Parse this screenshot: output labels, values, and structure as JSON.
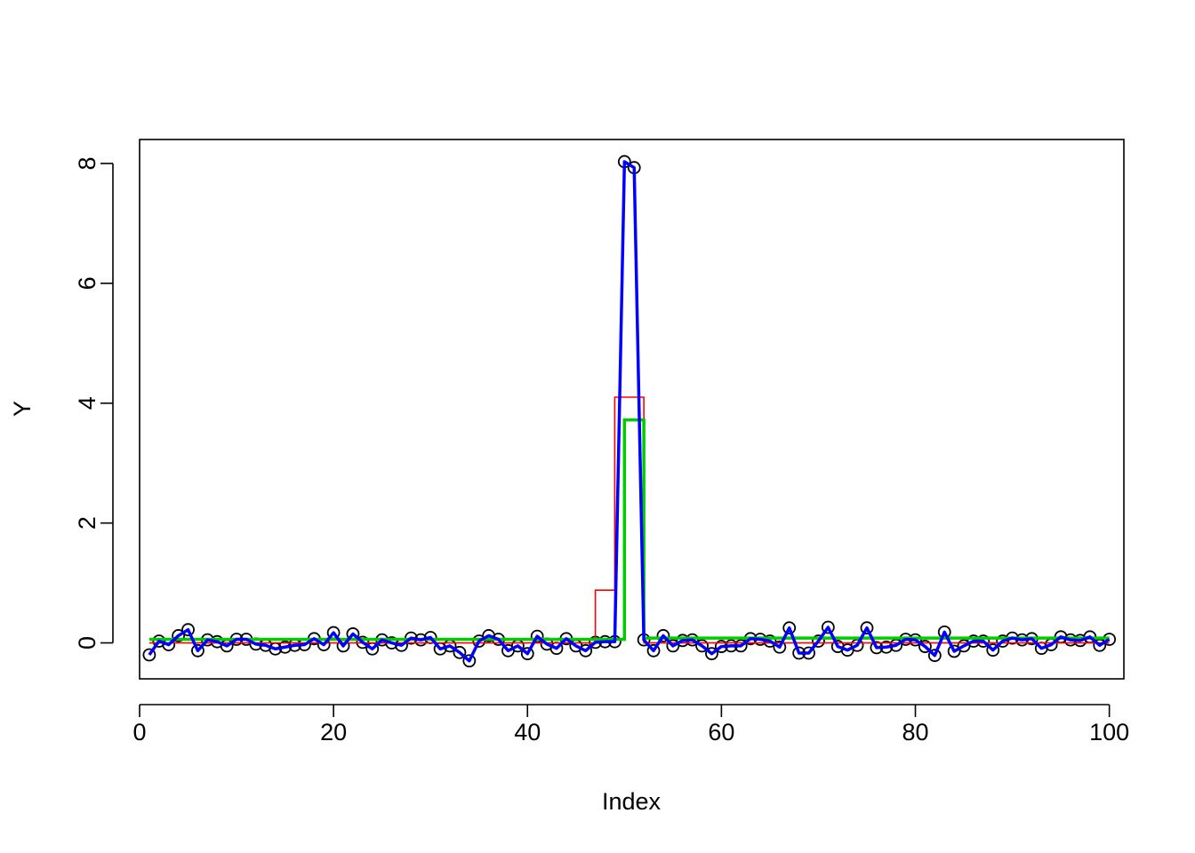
{
  "chart_data": {
    "type": "line",
    "title": "",
    "xlabel": "Index",
    "ylabel": "Y",
    "xlim": [
      0,
      101.5
    ],
    "ylim": [
      -0.6,
      8.4
    ],
    "x_ticks": [
      0,
      20,
      40,
      60,
      80,
      100
    ],
    "x_tick_labels": [
      "0",
      "20",
      "40",
      "60",
      "80",
      "100"
    ],
    "y_ticks": [
      0,
      2,
      4,
      6,
      8
    ],
    "y_tick_labels": [
      "0",
      "2",
      "4",
      "6",
      "8"
    ],
    "grid": false,
    "legend": "none",
    "colors": {
      "points": "#000000",
      "red": "#FF0000",
      "green": "#00CD00",
      "blue": "#0000FF"
    },
    "x": [
      1,
      2,
      3,
      4,
      5,
      6,
      7,
      8,
      9,
      10,
      11,
      12,
      13,
      14,
      15,
      16,
      17,
      18,
      19,
      20,
      21,
      22,
      23,
      24,
      25,
      26,
      27,
      28,
      29,
      30,
      31,
      32,
      33,
      34,
      35,
      36,
      37,
      38,
      39,
      40,
      41,
      42,
      43,
      44,
      45,
      46,
      47,
      48,
      49,
      50,
      51,
      52,
      53,
      54,
      55,
      56,
      57,
      58,
      59,
      60,
      61,
      62,
      63,
      64,
      65,
      66,
      67,
      68,
      69,
      70,
      71,
      72,
      73,
      74,
      75,
      76,
      77,
      78,
      79,
      80,
      81,
      82,
      83,
      84,
      85,
      86,
      87,
      88,
      89,
      90,
      91,
      92,
      93,
      94,
      95,
      96,
      97,
      98,
      99,
      100
    ],
    "series": [
      {
        "style": "points",
        "color": "points",
        "values": [
          -0.2,
          0.03,
          -0.03,
          0.12,
          0.22,
          -0.13,
          0.05,
          0.02,
          -0.05,
          0.06,
          0.06,
          -0.02,
          -0.04,
          -0.1,
          -0.07,
          -0.04,
          -0.03,
          0.07,
          -0.03,
          0.17,
          -0.05,
          0.15,
          0.01,
          -0.1,
          0.05,
          0.0,
          -0.04,
          0.08,
          0.05,
          0.09,
          -0.1,
          -0.05,
          -0.16,
          -0.3,
          0.03,
          0.12,
          0.06,
          -0.13,
          -0.05,
          -0.18,
          0.11,
          -0.02,
          -0.09,
          0.07,
          -0.05,
          -0.13,
          0.01,
          0.02,
          0.02,
          8.03,
          7.93,
          0.05,
          -0.13,
          0.12,
          -0.05,
          0.04,
          0.05,
          -0.05,
          -0.18,
          -0.06,
          -0.05,
          -0.05,
          0.07,
          0.06,
          0.03,
          -0.07,
          0.25,
          -0.17,
          -0.17,
          0.03,
          0.26,
          -0.06,
          -0.12,
          -0.04,
          0.25,
          -0.08,
          -0.07,
          -0.04,
          0.06,
          0.05,
          -0.06,
          -0.21,
          0.18,
          -0.14,
          -0.05,
          0.03,
          0.03,
          -0.12,
          0.03,
          0.08,
          0.05,
          0.07,
          -0.09,
          -0.03,
          0.1,
          0.05,
          0.04,
          0.1,
          -0.04,
          0.06
        ]
      },
      {
        "style": "step",
        "color": "red",
        "values": [
          0.0,
          0.0,
          0.0,
          0.0,
          0.0,
          0.0,
          0.0,
          0.0,
          0.0,
          0.0,
          0.0,
          0.0,
          0.0,
          0.0,
          0.0,
          0.0,
          0.0,
          0.0,
          0.0,
          0.0,
          0.0,
          0.0,
          0.0,
          0.0,
          0.0,
          0.0,
          0.0,
          0.0,
          0.0,
          0.0,
          0.0,
          0.0,
          0.0,
          0.0,
          0.0,
          0.0,
          0.0,
          0.0,
          0.0,
          0.0,
          0.0,
          0.0,
          0.0,
          0.0,
          0.0,
          0.0,
          0.88,
          0.88,
          4.1,
          4.1,
          4.1,
          0.0,
          0.0,
          0.0,
          0.0,
          0.0,
          0.0,
          0.0,
          0.0,
          0.0,
          0.0,
          0.0,
          0.0,
          0.0,
          0.0,
          0.0,
          0.0,
          0.0,
          0.0,
          0.0,
          0.0,
          0.0,
          0.0,
          0.0,
          0.0,
          0.0,
          0.0,
          0.0,
          0.0,
          0.0,
          0.0,
          0.0,
          0.0,
          0.0,
          0.0,
          0.0,
          0.0,
          0.0,
          0.0,
          0.0,
          0.0,
          0.0,
          0.0,
          0.0,
          0.0,
          0.0,
          0.0,
          0.0,
          0.0,
          0.0
        ]
      },
      {
        "style": "step",
        "color": "green",
        "values": [
          0.06,
          0.06,
          0.06,
          0.06,
          0.06,
          0.06,
          0.06,
          0.06,
          0.06,
          0.06,
          0.06,
          0.06,
          0.06,
          0.06,
          0.06,
          0.06,
          0.06,
          0.06,
          0.06,
          0.06,
          0.06,
          0.06,
          0.06,
          0.06,
          0.06,
          0.06,
          0.06,
          0.06,
          0.06,
          0.06,
          0.06,
          0.06,
          0.06,
          0.06,
          0.06,
          0.06,
          0.06,
          0.06,
          0.06,
          0.06,
          0.06,
          0.06,
          0.06,
          0.06,
          0.06,
          0.06,
          0.06,
          0.06,
          0.06,
          3.72,
          3.72,
          0.08,
          0.08,
          0.08,
          0.08,
          0.08,
          0.08,
          0.08,
          0.08,
          0.08,
          0.08,
          0.08,
          0.08,
          0.08,
          0.08,
          0.08,
          0.08,
          0.08,
          0.08,
          0.08,
          0.08,
          0.08,
          0.08,
          0.08,
          0.08,
          0.08,
          0.08,
          0.08,
          0.08,
          0.08,
          0.08,
          0.08,
          0.08,
          0.08,
          0.08,
          0.08,
          0.08,
          0.08,
          0.08,
          0.08,
          0.08,
          0.08,
          0.08,
          0.08,
          0.08,
          0.08,
          0.08,
          0.08,
          0.08,
          0.08
        ]
      },
      {
        "style": "line",
        "color": "blue",
        "values": [
          -0.2,
          0.03,
          -0.03,
          0.12,
          0.22,
          -0.13,
          0.05,
          0.02,
          -0.05,
          0.06,
          0.06,
          -0.02,
          -0.04,
          -0.1,
          -0.07,
          -0.04,
          -0.03,
          0.07,
          -0.03,
          0.17,
          -0.05,
          0.15,
          0.01,
          -0.1,
          0.05,
          0.0,
          -0.04,
          0.08,
          0.05,
          0.09,
          -0.1,
          -0.05,
          -0.16,
          -0.3,
          0.03,
          0.12,
          0.06,
          -0.13,
          -0.05,
          -0.18,
          0.11,
          -0.02,
          -0.09,
          0.07,
          -0.05,
          -0.13,
          0.01,
          0.02,
          0.02,
          8.03,
          7.93,
          0.05,
          -0.13,
          0.12,
          -0.05,
          0.04,
          0.05,
          -0.05,
          -0.18,
          -0.06,
          -0.05,
          -0.05,
          0.07,
          0.06,
          0.03,
          -0.07,
          0.25,
          -0.17,
          -0.17,
          0.03,
          0.26,
          -0.06,
          -0.12,
          -0.04,
          0.25,
          -0.08,
          -0.07,
          -0.04,
          0.06,
          0.05,
          -0.06,
          -0.21,
          0.18,
          -0.14,
          -0.05,
          0.03,
          0.03,
          -0.12,
          0.03,
          0.08,
          0.05,
          0.07,
          -0.09,
          -0.03,
          0.1,
          0.05,
          0.04,
          0.1,
          -0.04,
          0.06
        ]
      }
    ]
  }
}
